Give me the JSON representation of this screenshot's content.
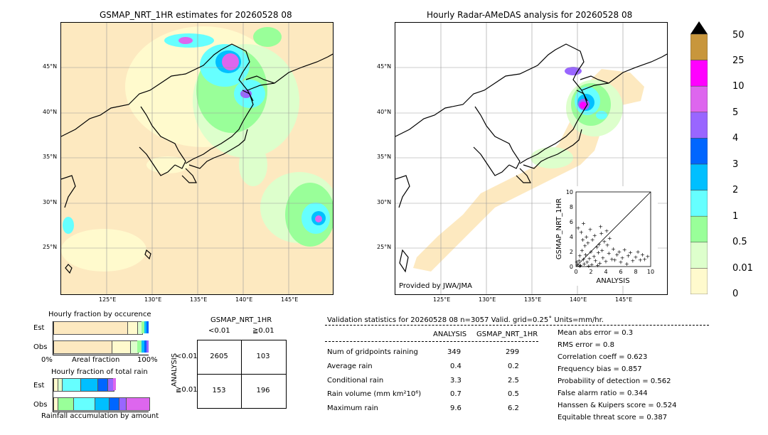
{
  "left_map": {
    "title": "GSMAP_NRT_1HR estimates for 20260528 08",
    "lat_ticks": [
      "45°N",
      "40°N",
      "35°N",
      "30°N",
      "25°N"
    ],
    "lon_ticks": [
      "125°E",
      "130°E",
      "135°E",
      "140°E",
      "145°E"
    ]
  },
  "right_map": {
    "title": "Hourly Radar-AMeDAS analysis for 20260528 08",
    "lat_ticks": [
      "45°N",
      "40°N",
      "35°N",
      "30°N",
      "25°N"
    ],
    "lon_ticks": [
      "125°E",
      "130°E",
      "135°E",
      "140°E",
      "145°E"
    ],
    "credit": "Provided by JWA/JMA"
  },
  "colorbar": {
    "labels": [
      "50",
      "25",
      "10",
      "5",
      "4",
      "3",
      "2",
      "1",
      "0.5",
      "0.01",
      "0"
    ],
    "colors": [
      "#c8963c",
      "#ff00ff",
      "#dd66ee",
      "#9966ff",
      "#0066ff",
      "#00bfff",
      "#66ffff",
      "#99ff99",
      "#ddffcc",
      "#fffacd",
      "#fde9c0"
    ]
  },
  "occurrence": {
    "title": "Hourly fraction by occurence",
    "row_labels": [
      "Est",
      "Obs"
    ],
    "axis_left": "0%",
    "axis_mid": "Areal fraction",
    "axis_right": "100%"
  },
  "total_rain": {
    "title": "Hourly fraction of total rain",
    "row_labels": [
      "Est",
      "Obs"
    ],
    "axis_label": "Rainfall accumulation by amount"
  },
  "contingency": {
    "title": "GSMAP_NRT_1HR",
    "col_headers": [
      "<0.01",
      "≧0.01"
    ],
    "row_axis": "ANALYSIS",
    "row_headers": [
      "<0.01",
      "≧0.01"
    ],
    "cells": [
      [
        "2605",
        "103"
      ],
      [
        "153",
        "196"
      ]
    ]
  },
  "validation": {
    "header": "Validation statistics for 20260528 08  n=3057 Valid. grid=0.25˚ Units=mm/hr.",
    "col_analysis": "ANALYSIS",
    "col_gsmap": "GSMAP_NRT_1HR",
    "rows": [
      {
        "label": "Num of gridpoints raining",
        "analysis": "349",
        "gsmap": "299"
      },
      {
        "label": "Average rain",
        "analysis": "0.4",
        "gsmap": "0.2"
      },
      {
        "label": "Conditional rain",
        "analysis": "3.3",
        "gsmap": "2.5"
      },
      {
        "label": "Rain volume (mm km²10⁶)",
        "analysis": "0.7",
        "gsmap": "0.5"
      },
      {
        "label": "Maximum rain",
        "analysis": "9.6",
        "gsmap": "6.2"
      }
    ],
    "scores": [
      "Mean abs error =    0.3",
      "RMS error =    0.8",
      "Correlation coeff =  0.623",
      "Frequency bias =  0.857",
      "Probability of detection =  0.562",
      "False alarm ratio =  0.344",
      "Hanssen & Kuipers score =  0.524",
      "Equitable threat score =  0.387"
    ]
  },
  "chart_data": {
    "type": "scatter",
    "xlabel": "ANALYSIS",
    "ylabel": "GSMAP_NRT_1HR",
    "xlim": [
      0,
      10
    ],
    "ylim": [
      0,
      10
    ],
    "x_ticks": [
      "0",
      "2",
      "4",
      "6",
      "8",
      "10"
    ],
    "y_ticks": [
      "0",
      "2",
      "4",
      "6",
      "8",
      "10"
    ],
    "points": [
      [
        0.2,
        0.3
      ],
      [
        0.4,
        0.8
      ],
      [
        0.5,
        1.5
      ],
      [
        0.6,
        0.2
      ],
      [
        0.8,
        2.2
      ],
      [
        1.0,
        1.0
      ],
      [
        1.1,
        0.4
      ],
      [
        1.2,
        2.8
      ],
      [
        1.3,
        1.6
      ],
      [
        1.5,
        0.6
      ],
      [
        1.6,
        3.2
      ],
      [
        1.8,
        1.1
      ],
      [
        2.0,
        2.0
      ],
      [
        2.1,
        0.3
      ],
      [
        2.2,
        3.6
      ],
      [
        2.4,
        1.4
      ],
      [
        2.5,
        4.2
      ],
      [
        2.6,
        0.8
      ],
      [
        2.8,
        2.6
      ],
      [
        3.0,
        1.9
      ],
      [
        3.1,
        3.0
      ],
      [
        3.2,
        0.5
      ],
      [
        3.4,
        4.5
      ],
      [
        3.5,
        2.2
      ],
      [
        3.6,
        1.2
      ],
      [
        3.8,
        3.4
      ],
      [
        4.0,
        0.7
      ],
      [
        4.2,
        2.9
      ],
      [
        4.4,
        1.8
      ],
      [
        4.5,
        3.8
      ],
      [
        4.8,
        1.0
      ],
      [
        5.0,
        2.4
      ],
      [
        5.2,
        0.9
      ],
      [
        5.5,
        1.6
      ],
      [
        5.8,
        2.0
      ],
      [
        6.0,
        0.6
      ],
      [
        6.2,
        1.2
      ],
      [
        6.5,
        2.3
      ],
      [
        6.8,
        0.4
      ],
      [
        7.0,
        1.5
      ],
      [
        7.3,
        1.9
      ],
      [
        7.6,
        0.8
      ],
      [
        8.0,
        1.3
      ],
      [
        8.3,
        2.0
      ],
      [
        8.6,
        0.9
      ],
      [
        8.9,
        1.6
      ],
      [
        9.2,
        1.0
      ],
      [
        9.6,
        1.4
      ],
      [
        0.3,
        5.2
      ],
      [
        0.7,
        4.6
      ],
      [
        1.0,
        5.8
      ],
      [
        1.4,
        4.0
      ],
      [
        0.9,
        3.6
      ],
      [
        1.9,
        5.0
      ],
      [
        0.5,
        0.1
      ],
      [
        0.1,
        0.6
      ],
      [
        1.7,
        0.1
      ],
      [
        2.9,
        0.2
      ],
      [
        3.3,
        5.4
      ],
      [
        4.1,
        4.8
      ]
    ]
  }
}
